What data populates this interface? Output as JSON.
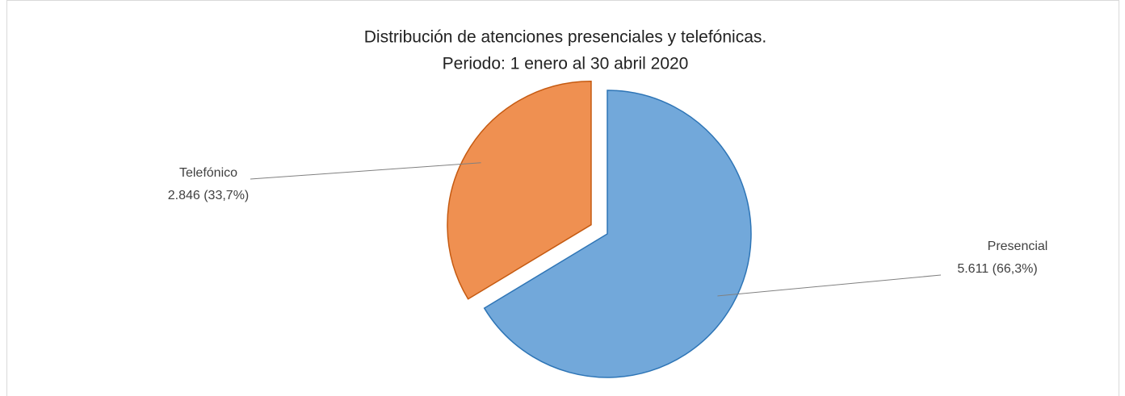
{
  "chart_data": {
    "type": "pie",
    "title": "Distribución de atenciones presenciales y telefónicas.",
    "subtitle": "Periodo: 1 enero al 30 abril 2020",
    "categories": [
      "Presencial",
      "Telefónico"
    ],
    "values": [
      5611,
      2846
    ],
    "value_labels": [
      "5.611 (66,3%)",
      "2.846  (33,7%)"
    ],
    "colors": [
      "#72a8da",
      "#ef9051"
    ],
    "legend": false
  }
}
